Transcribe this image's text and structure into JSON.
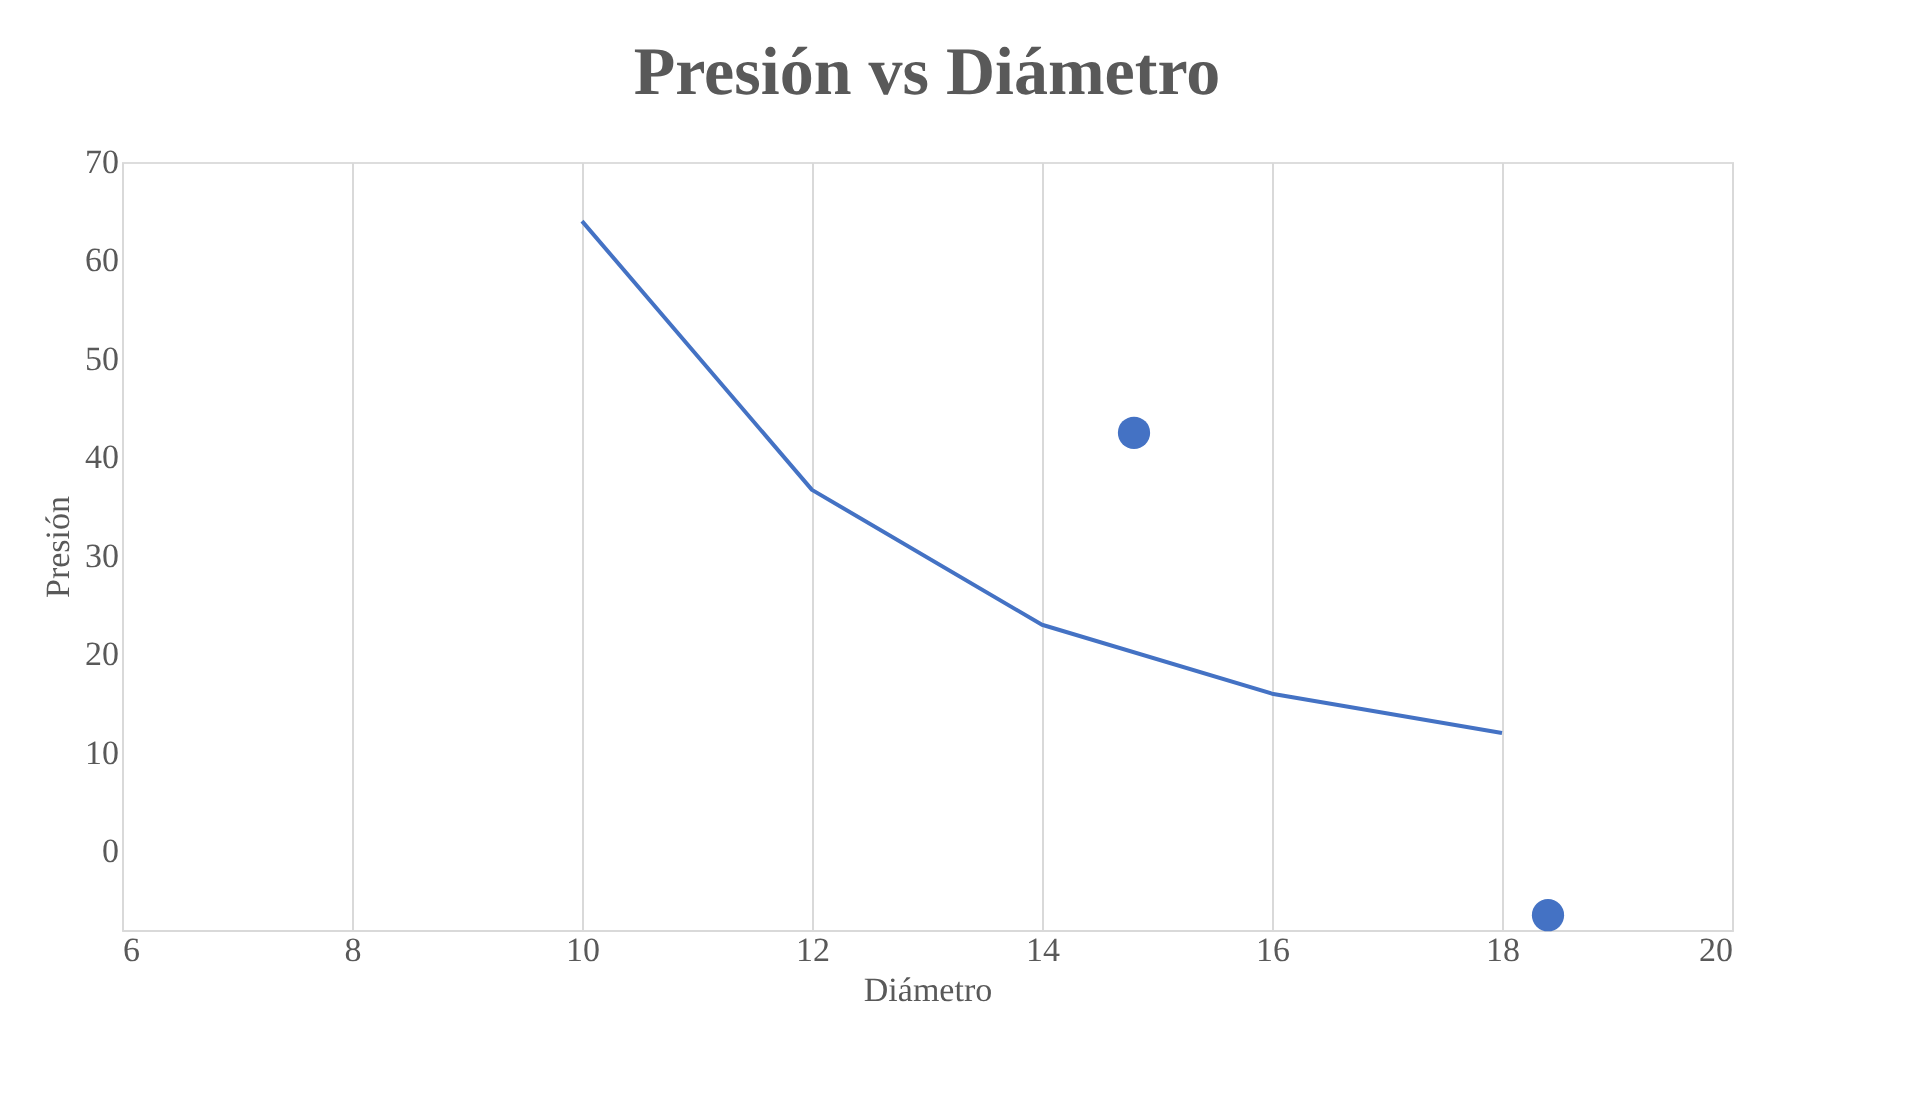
{
  "chart_data": {
    "type": "line",
    "title": "Presión vs Diámetro",
    "xlabel": "Diámetro",
    "ylabel": "Presión",
    "xlim": [
      6,
      20
    ],
    "xticks": [
      6,
      8,
      10,
      12,
      14,
      16,
      18,
      20
    ],
    "ylim": [
      -8,
      70
    ],
    "yticks": [
      0,
      10,
      20,
      30,
      40,
      50,
      60,
      70
    ],
    "grid": "x",
    "series": [
      {
        "color": "#4472c4",
        "x": [
          10,
          12,
          14,
          16,
          18
        ],
        "values": [
          64,
          36.7,
          23,
          16,
          12
        ],
        "marker": "none"
      },
      {
        "type": "scatter",
        "color": "#4472c4",
        "x": [
          14.8,
          18.4
        ],
        "values": [
          42.5,
          -6.5
        ],
        "marker": "circle"
      }
    ]
  }
}
